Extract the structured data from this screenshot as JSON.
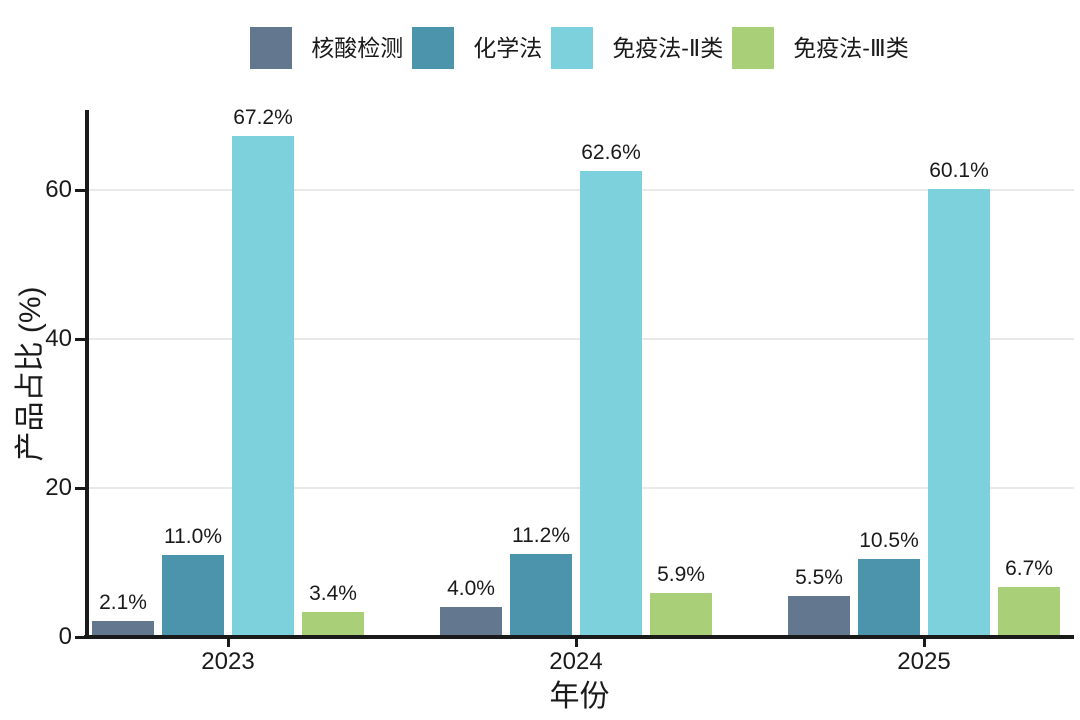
{
  "chart_data": {
    "type": "bar",
    "title": "",
    "categories": [
      "2023",
      "2024",
      "2025"
    ],
    "series": [
      {
        "name": "核酸检测",
        "color": "#63788e",
        "values": [
          2.1,
          4.0,
          5.5
        ],
        "value_labels": [
          "2.1%",
          "4.0%",
          "5.5%"
        ]
      },
      {
        "name": "化学法",
        "color": "#4c94ab",
        "values": [
          11.0,
          11.2,
          10.5
        ],
        "value_labels": [
          "11.0%",
          "11.2%",
          "10.5%"
        ]
      },
      {
        "name": "免疫法-Ⅱ类",
        "color": "#7dd1dd",
        "values": [
          67.2,
          62.6,
          60.1
        ],
        "value_labels": [
          "67.2%",
          "62.6%",
          "60.1%"
        ]
      },
      {
        "name": "免疫法-Ⅲ类",
        "color": "#aacf79",
        "values": [
          3.4,
          5.9,
          6.7
        ],
        "value_labels": [
          "3.4%",
          "5.9%",
          "6.7%"
        ]
      }
    ],
    "xlabel": "年份",
    "ylabel": "产品占比 (%)",
    "ylim": [
      0,
      70.5
    ],
    "yticks": [
      0,
      20,
      40,
      60
    ],
    "ytick_labels": [
      "0",
      "20",
      "40",
      "60"
    ],
    "grid": true,
    "gridline_values": [
      20,
      40,
      60
    ],
    "legend_position": "top",
    "colors": {
      "axis": "#1a1a1a",
      "grid": "#e9e9e9",
      "text": "#1a1a1a",
      "background": "#ffffff"
    }
  }
}
